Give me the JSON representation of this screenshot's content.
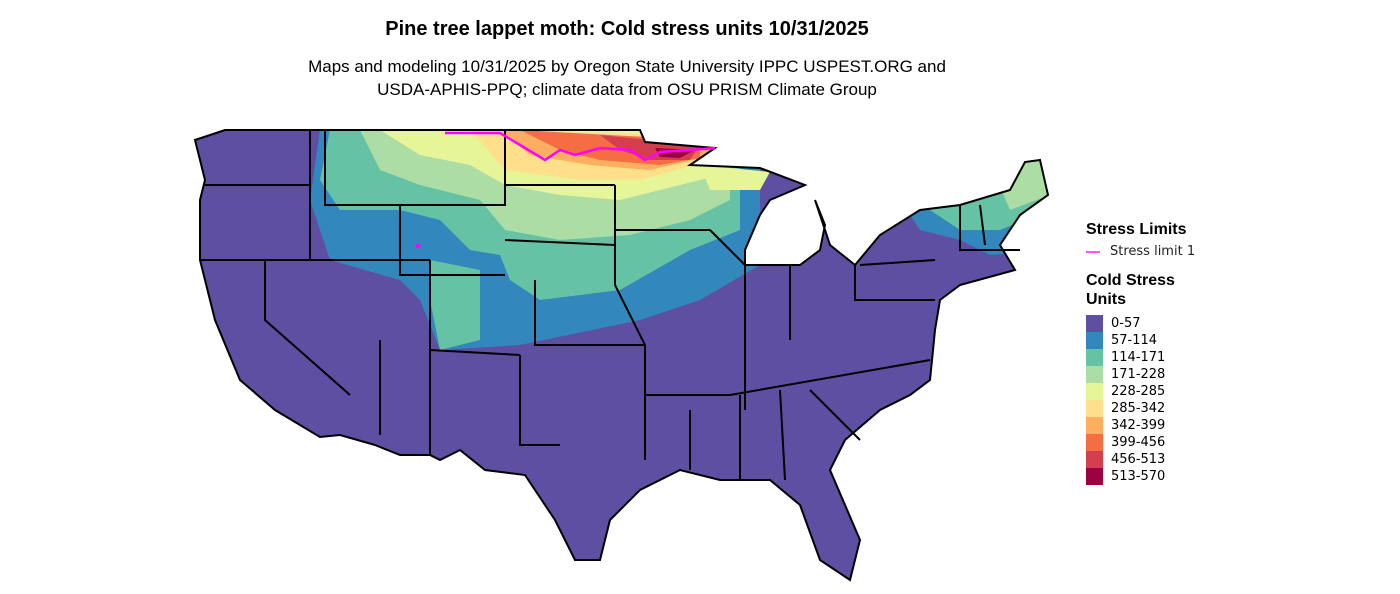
{
  "title": "Pine tree lappet moth: Cold stress units 10/31/2025",
  "subtitle_line1": "Maps and modeling 10/31/2025 by Oregon State University IPPC USPEST.ORG and",
  "subtitle_line2": "USDA-APHIS-PPQ; climate data from OSU PRISM Climate Group",
  "legend": {
    "limits_title": "Stress Limits",
    "limit_items": [
      {
        "label": "Stress limit 1",
        "color": "#ff00ff"
      }
    ],
    "units_title_line1": "Cold Stress",
    "units_title_line2": "Units",
    "bins": [
      {
        "label": "0-57",
        "color": "#5e4fa2"
      },
      {
        "label": "57-114",
        "color": "#3288bd"
      },
      {
        "label": "114-171",
        "color": "#66c2a5"
      },
      {
        "label": "171-228",
        "color": "#abdda4"
      },
      {
        "label": "228-285",
        "color": "#e6f598"
      },
      {
        "label": "285-342",
        "color": "#fee08b"
      },
      {
        "label": "342-399",
        "color": "#fdae61"
      },
      {
        "label": "399-456",
        "color": "#f46d43"
      },
      {
        "label": "456-513",
        "color": "#d53e4f"
      },
      {
        "label": "513-570",
        "color": "#9e0142"
      }
    ]
  }
}
